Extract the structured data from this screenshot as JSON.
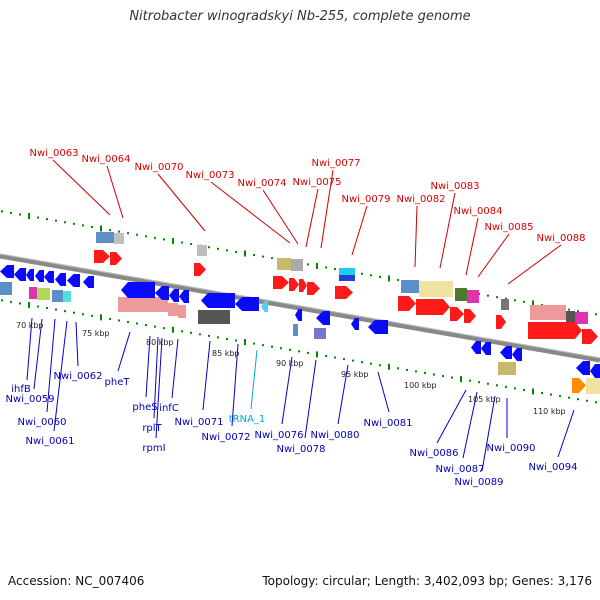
{
  "title": "Nitrobacter winogradskyi Nb-255, complete genome",
  "accession": "Accession: NC_007406",
  "summary": "Topology: circular; Length: 3,402,093 bp; Genes: 3,176",
  "scale_labels": [
    "70 kbp",
    "75 kbp",
    "80 kbp",
    "85 kbp",
    "90 kbp",
    "95 kbp",
    "100 kbp",
    "105 kbp",
    "110 kbp"
  ],
  "top_labels": [
    "Nwi_0063",
    "Nwi_0064",
    "Nwi_0070",
    "Nwi_0073",
    "Nwi_0074",
    "Nwi_0075",
    "Nwi_0077",
    "Nwi_0079",
    "Nwi_0082",
    "Nwi_0083",
    "Nwi_0084",
    "Nwi_0085",
    "Nwi_0088"
  ],
  "bottom_labels": [
    "ihfB",
    "Nwi_0059",
    "Nwi_0060",
    "Nwi_0061",
    "Nwi_0062",
    "pheT",
    "pheS",
    "rplT",
    "rpmI",
    "infC",
    "Nwi_0071",
    "Nwi_0072",
    "tRNA_1",
    "Nwi_0076",
    "Nwi_0078",
    "Nwi_0080",
    "Nwi_0081",
    "Nwi_0086",
    "Nwi_0087",
    "Nwi_0089",
    "Nwi_0090",
    "Nwi_0094"
  ],
  "colors": {
    "top_label": "#dd0000",
    "bottom_label": "#0000bb",
    "trna_label": "#00aacc",
    "leader_top": "#cc0000",
    "leader_bottom": "#0000cc",
    "backbone": "#888888",
    "tick": "#008800",
    "gene_blue": "#0a0aff",
    "gene_red": "#ff1a1a"
  }
}
